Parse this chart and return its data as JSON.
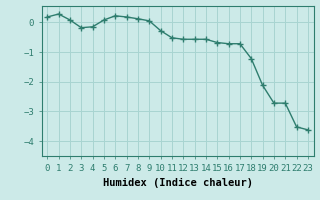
{
  "x": [
    0,
    1,
    2,
    3,
    4,
    5,
    6,
    7,
    8,
    9,
    10,
    11,
    12,
    13,
    14,
    15,
    16,
    17,
    18,
    19,
    20,
    21,
    22,
    23
  ],
  "y": [
    0.18,
    0.28,
    0.08,
    -0.18,
    -0.15,
    0.08,
    0.22,
    0.18,
    0.12,
    0.05,
    -0.28,
    -0.52,
    -0.57,
    -0.57,
    -0.57,
    -0.68,
    -0.72,
    -0.72,
    -1.22,
    -2.12,
    -2.72,
    -2.72,
    -3.52,
    -3.62
  ],
  "line_color": "#2e7d6e",
  "marker": "+",
  "bg_color": "#cceae8",
  "grid_color": "#a8d4d1",
  "xlabel": "Humidex (Indice chaleur)",
  "ylim": [
    -4.5,
    0.55
  ],
  "xlim": [
    -0.5,
    23.5
  ],
  "yticks": [
    0,
    -1,
    -2,
    -3,
    -4
  ],
  "xtick_labels": [
    "0",
    "1",
    "2",
    "3",
    "4",
    "5",
    "6",
    "7",
    "8",
    "9",
    "10",
    "11",
    "12",
    "13",
    "14",
    "15",
    "16",
    "17",
    "18",
    "19",
    "20",
    "21",
    "22",
    "23"
  ],
  "xlabel_fontsize": 7.5,
  "tick_fontsize": 6.5,
  "line_width": 1.0,
  "marker_size": 4
}
